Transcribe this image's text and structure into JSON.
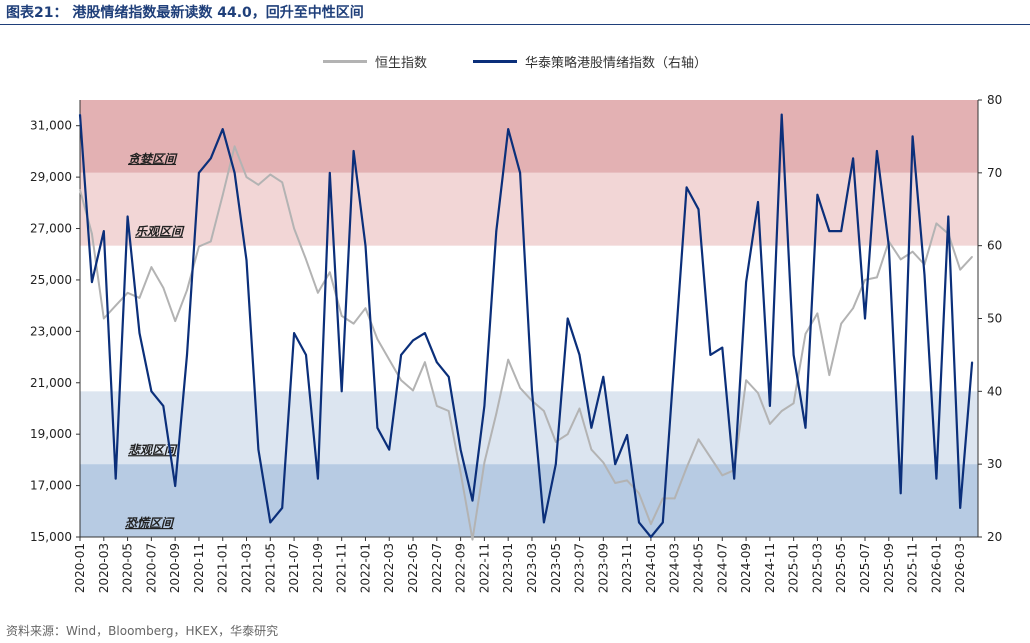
{
  "figure": {
    "title": "图表21：  港股情绪指数最新读数 44.0，回升至中性区间",
    "source": "资料来源：Wind，Bloomberg，HKEX，华泰研究"
  },
  "legend": [
    {
      "label": "恒生指数",
      "color": "#b3b3b3"
    },
    {
      "label": "华泰策略港股情绪指数（右轴）",
      "color": "#0b2f7a"
    }
  ],
  "zones": [
    {
      "label": "贪婪区间",
      "from": 70,
      "to": 80,
      "color": "#e3b1b3"
    },
    {
      "label": "乐观区间",
      "from": 60,
      "to": 70,
      "color": "#f2d6d6"
    },
    {
      "label": "悲观区间",
      "from": 30,
      "to": 40,
      "color": "#dce5f0"
    },
    {
      "label": "恐慌区间",
      "from": 20,
      "to": 30,
      "color": "#b7cbe3"
    }
  ],
  "chart_data": {
    "type": "line",
    "title": "港股情绪指数最新读数 44.0，回升至中性区间",
    "xlabel": "",
    "ylabel_left": "",
    "ylabel_right": "",
    "x_ticks": [
      "2020-01",
      "2020-03",
      "2020-05",
      "2020-07",
      "2020-09",
      "2020-11",
      "2021-01",
      "2021-03",
      "2021-05",
      "2021-07",
      "2021-09",
      "2021-11",
      "2022-01",
      "2022-03",
      "2022-05",
      "2022-07",
      "2022-09",
      "2022-11",
      "2023-01",
      "2023-03",
      "2023-05",
      "2023-07",
      "2023-09",
      "2023-11",
      "2024-01",
      "2024-03",
      "2024-05",
      "2024-07",
      "2024-09",
      "2024-11",
      "2025-01",
      "2025-03",
      "2025-05",
      "2025-07",
      "2025-09",
      "2025-11",
      "2026-01",
      "2026-03"
    ],
    "y_left": {
      "lim": [
        15000,
        32000
      ],
      "ticks": [
        15000,
        17000,
        19000,
        21000,
        23000,
        25000,
        27000,
        29000,
        31000
      ],
      "tick_labels": [
        "15,000",
        "17,000",
        "19,000",
        "21,000",
        "23,000",
        "25,000",
        "27,000",
        "29,000",
        "31,000"
      ]
    },
    "y_right": {
      "lim": [
        20,
        80
      ],
      "ticks": [
        20,
        30,
        40,
        50,
        60,
        70,
        80
      ]
    },
    "series": [
      {
        "name": "恒生指数",
        "axis": "left",
        "x": [
          "2020-01",
          "2020-02",
          "2020-03",
          "2020-04",
          "2020-05",
          "2020-06",
          "2020-07",
          "2020-08",
          "2020-09",
          "2020-10",
          "2020-11",
          "2020-12",
          "2021-01",
          "2021-02",
          "2021-03",
          "2021-04",
          "2021-05",
          "2021-06",
          "2021-07",
          "2021-08",
          "2021-09",
          "2021-10",
          "2021-11",
          "2021-12",
          "2022-01",
          "2022-02",
          "2022-03",
          "2022-04",
          "2022-05",
          "2022-06",
          "2022-07",
          "2022-08",
          "2022-09",
          "2022-10",
          "2022-11",
          "2022-12",
          "2023-01",
          "2023-02",
          "2023-03",
          "2023-04",
          "2023-05",
          "2023-06",
          "2023-07",
          "2023-08",
          "2023-09",
          "2023-10",
          "2023-11",
          "2023-12",
          "2024-01",
          "2024-02",
          "2024-03",
          "2024-04",
          "2024-05",
          "2024-06",
          "2024-07",
          "2024-08",
          "2024-09",
          "2024-10",
          "2024-11",
          "2024-12",
          "2025-01",
          "2025-02",
          "2025-03",
          "2025-04",
          "2025-05",
          "2025-06",
          "2025-07",
          "2025-08",
          "2025-09",
          "2025-10",
          "2025-11",
          "2025-12",
          "2026-01",
          "2026-02",
          "2026-03",
          "2026-04"
        ],
        "values": [
          28500,
          26800,
          23500,
          24000,
          24500,
          24300,
          25500,
          24700,
          23400,
          24600,
          26300,
          26500,
          28300,
          30200,
          29000,
          28700,
          29100,
          28800,
          27000,
          25800,
          24500,
          25300,
          23600,
          23300,
          23900,
          22700,
          21900,
          21100,
          20700,
          21800,
          20100,
          19900,
          17500,
          14900,
          17900,
          19800,
          21900,
          20800,
          20300,
          19900,
          18700,
          19000,
          20000,
          18400,
          17900,
          17100,
          17200,
          16700,
          15500,
          16500,
          16500,
          17700,
          18800,
          18100,
          17400,
          17600,
          21100,
          20600,
          19400,
          19900,
          20200,
          22900,
          23700,
          21300,
          23300,
          23900,
          25000,
          25100,
          26500,
          25800,
          26100,
          25600,
          27200,
          26800,
          25400,
          25900
        ]
      },
      {
        "name": "华泰策略港股情绪指数（右轴）",
        "axis": "right",
        "x": [
          "2020-01",
          "2020-02",
          "2020-03",
          "2020-04",
          "2020-05",
          "2020-06",
          "2020-07",
          "2020-08",
          "2020-09",
          "2020-10",
          "2020-11",
          "2020-12",
          "2021-01",
          "2021-02",
          "2021-03",
          "2021-04",
          "2021-05",
          "2021-06",
          "2021-07",
          "2021-08",
          "2021-09",
          "2021-10",
          "2021-11",
          "2021-12",
          "2022-01",
          "2022-02",
          "2022-03",
          "2022-04",
          "2022-05",
          "2022-06",
          "2022-07",
          "2022-08",
          "2022-09",
          "2022-10",
          "2022-11",
          "2022-12",
          "2023-01",
          "2023-02",
          "2023-03",
          "2023-04",
          "2023-05",
          "2023-06",
          "2023-07",
          "2023-08",
          "2023-09",
          "2023-10",
          "2023-11",
          "2023-12",
          "2024-01",
          "2024-02",
          "2024-03",
          "2024-04",
          "2024-05",
          "2024-06",
          "2024-07",
          "2024-08",
          "2024-09",
          "2024-10",
          "2024-11",
          "2024-12",
          "2025-01",
          "2025-02",
          "2025-03",
          "2025-04",
          "2025-05",
          "2025-06",
          "2025-07",
          "2025-08",
          "2025-09",
          "2025-10",
          "2025-11",
          "2025-12",
          "2026-01",
          "2026-02",
          "2026-03",
          "2026-04"
        ],
        "values": [
          78,
          55,
          62,
          28,
          64,
          48,
          40,
          38,
          27,
          45,
          70,
          72,
          76,
          70,
          58,
          32,
          22,
          24,
          48,
          45,
          28,
          70,
          40,
          73,
          60,
          35,
          32,
          45,
          47,
          48,
          44,
          42,
          32,
          25,
          38,
          62,
          76,
          70,
          40,
          22,
          30,
          50,
          45,
          35,
          42,
          30,
          34,
          22,
          20,
          22,
          45,
          68,
          65,
          45,
          46,
          28,
          55,
          66,
          38,
          78,
          45,
          35,
          67,
          62,
          62,
          72,
          50,
          73,
          60,
          26,
          75,
          56,
          28,
          64,
          24,
          44
        ]
      }
    ]
  }
}
